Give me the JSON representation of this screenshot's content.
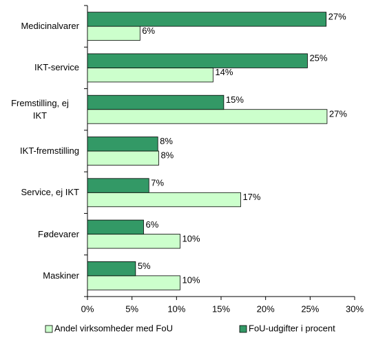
{
  "chart_data": {
    "type": "bar",
    "orientation": "horizontal",
    "categories": [
      "Medicinalvarer",
      "IKT-service",
      "Fremstilling, ej IKT",
      "IKT-fremstilling",
      "Service, ej IKT",
      "Fødevarer",
      "Maskiner"
    ],
    "series": [
      {
        "name": "Andel virksomheder med FoU",
        "color": "#ccffcc",
        "values": [
          5.9,
          14.1,
          26.9,
          8.0,
          17.2,
          10.4,
          10.4
        ],
        "value_labels": [
          "6%",
          "14%",
          "27%",
          "8%",
          "17%",
          "10%",
          "10%"
        ]
      },
      {
        "name": "FoU-udgifter i procent",
        "color": "#339966",
        "values": [
          26.8,
          24.7,
          15.3,
          7.9,
          6.9,
          6.3,
          5.4
        ],
        "value_labels": [
          "27%",
          "25%",
          "15%",
          "8%",
          "7%",
          "6%",
          "5%"
        ]
      }
    ],
    "xlim": [
      0,
      30
    ],
    "xticks": [
      {
        "value": 0,
        "label": "0%"
      },
      {
        "value": 5,
        "label": "5%"
      },
      {
        "value": 10,
        "label": "10%"
      },
      {
        "value": 15,
        "label": "15%"
      },
      {
        "value": 20,
        "label": "20%"
      },
      {
        "value": 25,
        "label": "25%"
      },
      {
        "value": 30,
        "label": "30%"
      }
    ],
    "grid": false,
    "legend": "bottom"
  }
}
